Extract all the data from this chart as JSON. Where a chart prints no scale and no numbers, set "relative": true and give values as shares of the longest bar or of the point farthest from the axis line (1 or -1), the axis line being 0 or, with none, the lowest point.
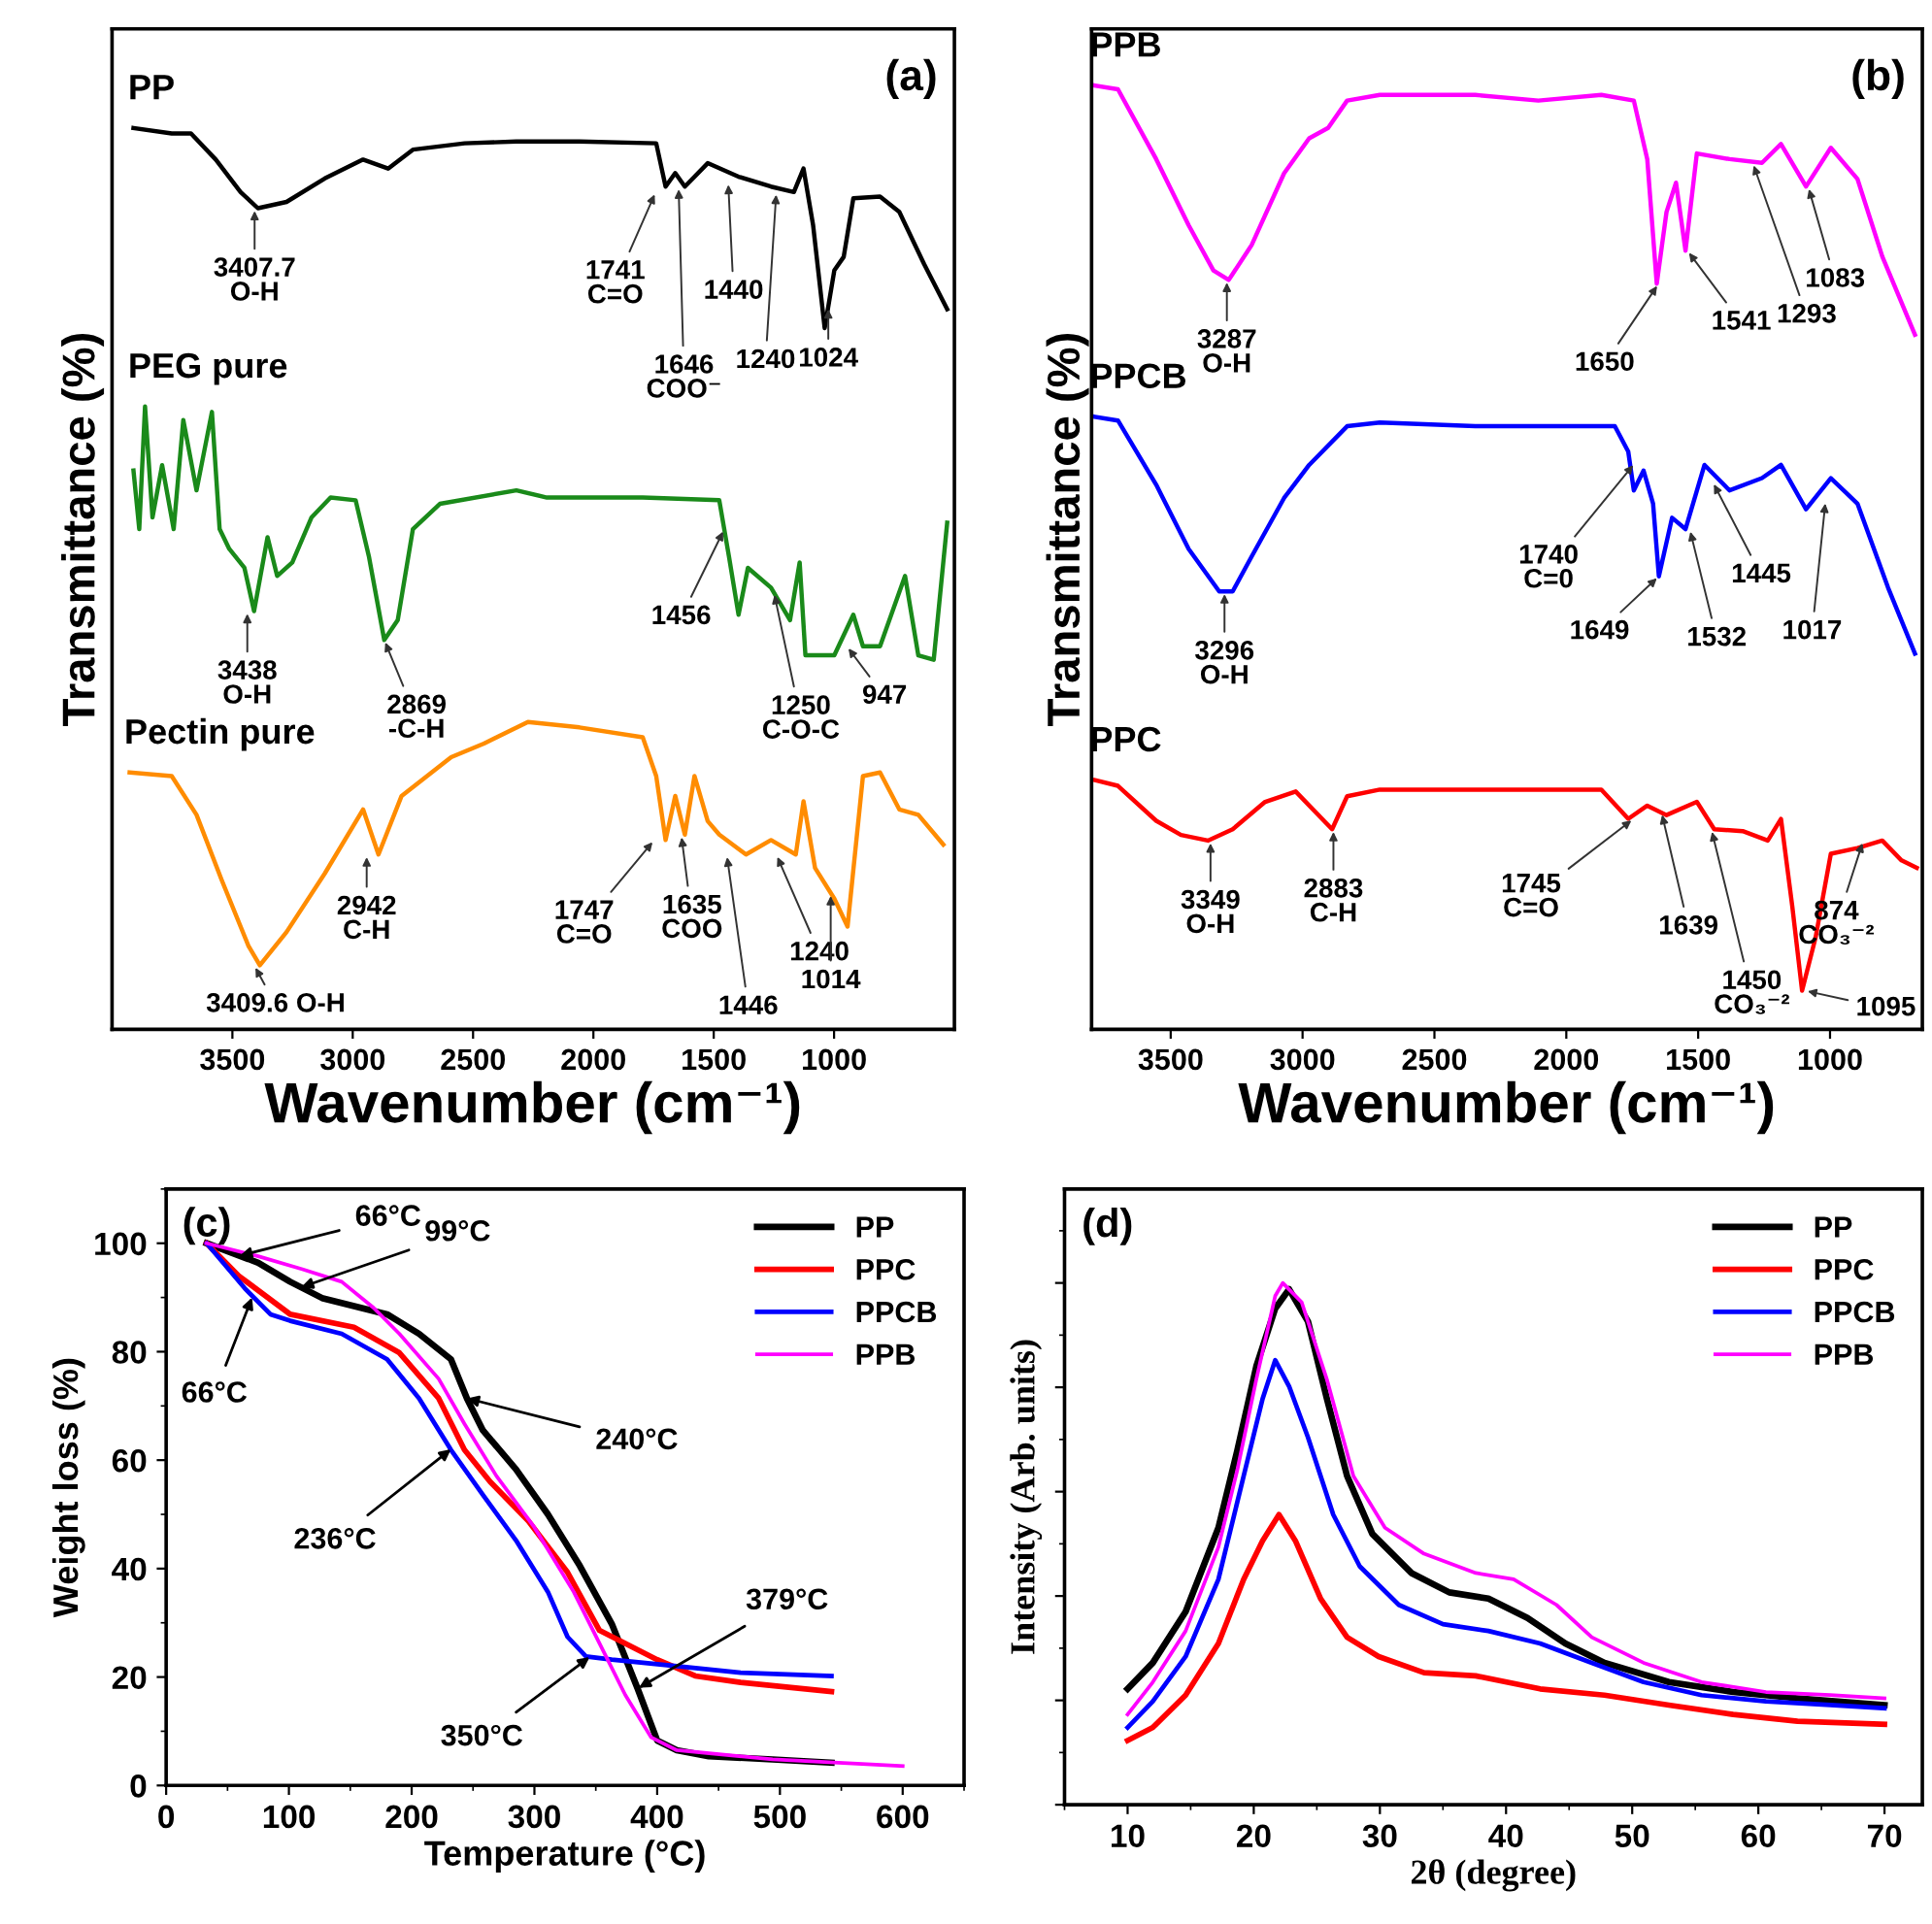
{
  "chart_data": [
    {
      "type": "line",
      "relative": true,
      "xlabel": "Wavenumber (cm⁻¹)",
      "ylabel": "Transmittance (%)",
      "xlim": [
        4000,
        500
      ],
      "xticks": [
        3500,
        3000,
        2500,
        2000,
        1500,
        1000
      ],
      "tick_labels": "x",
      "legend": false,
      "grid": false,
      "marker": "none",
      "line_style": "solid",
      "series": [
        {
          "name": "PP",
          "color": "#000000",
          "x": [
            3911,
            3752,
            3672,
            3569,
            3466,
            3394,
            3275,
            3116,
            2957,
            2853,
            2750,
            2535,
            2320,
            2058,
            1739,
            1700,
            1660,
            1620,
            1525,
            1397,
            1262,
            1167,
            1127,
            1087,
            1039,
            999,
            960,
            920,
            809,
            729,
            626,
            530
          ],
          "values": [
            1.0,
            0.994,
            0.994,
            0.965,
            0.929,
            0.911,
            0.918,
            0.944,
            0.965,
            0.955,
            0.976,
            0.983,
            0.985,
            0.985,
            0.983,
            0.935,
            0.95,
            0.935,
            0.961,
            0.946,
            0.935,
            0.929,
            0.955,
            0.892,
            0.778,
            0.842,
            0.857,
            0.922,
            0.924,
            0.907,
            0.849,
            0.799
          ]
        },
        {
          "name": "PEG pure",
          "color": "#1a8a1a",
          "x": [
            3911,
            3887,
            3863,
            3832,
            3792,
            3744,
            3704,
            3649,
            3585,
            3553,
            3513,
            3450,
            3410,
            3354,
            3314,
            3251,
            3171,
            3092,
            2988,
            2933,
            2869,
            2813,
            2750,
            2638,
            2320,
            2193,
            1795,
            1477,
            1437,
            1397,
            1358,
            1262,
            1183,
            1143,
            1119,
            999,
            920,
            880,
            809,
            705,
            650,
            586,
            530
          ],
          "values": [
            0.62,
            0.555,
            0.691,
            0.568,
            0.626,
            0.555,
            0.676,
            0.598,
            0.685,
            0.555,
            0.533,
            0.512,
            0.464,
            0.546,
            0.503,
            0.518,
            0.568,
            0.59,
            0.587,
            0.525,
            0.432,
            0.454,
            0.555,
            0.583,
            0.598,
            0.59,
            0.59,
            0.587,
            0.525,
            0.46,
            0.512,
            0.49,
            0.454,
            0.518,
            0.415,
            0.415,
            0.46,
            0.425,
            0.425,
            0.503,
            0.415,
            0.41,
            0.562
          ]
        },
        {
          "name": "Pectin pure",
          "color": "#ff8c00",
          "x": [
            3927,
            3752,
            3649,
            3545,
            3434,
            3386,
            3275,
            3116,
            2957,
            2893,
            2797,
            2591,
            2455,
            2272,
            2058,
            1795,
            1739,
            1700,
            1660,
            1620,
            1580,
            1525,
            1477,
            1366,
            1262,
            1159,
            1127,
            1079,
            999,
            944,
            880,
            809,
            729,
            650,
            546
          ],
          "values": [
            0.285,
            0.281,
            0.238,
            0.166,
            0.093,
            0.071,
            0.108,
            0.173,
            0.244,
            0.194,
            0.259,
            0.302,
            0.317,
            0.341,
            0.335,
            0.324,
            0.281,
            0.21,
            0.259,
            0.216,
            0.281,
            0.231,
            0.216,
            0.194,
            0.21,
            0.194,
            0.253,
            0.179,
            0.145,
            0.114,
            0.281,
            0.285,
            0.244,
            0.238,
            0.205
          ]
        }
      ],
      "annotations": [
        {
          "text": "3407.7\nO-H",
          "x": 3407.7,
          "y": 0.911
        },
        {
          "text": "1741\nC=O",
          "x": 1741,
          "y": 0.929
        },
        {
          "text": "1646\nCOO⁻",
          "x": 1646,
          "y": 0.935
        },
        {
          "text": "1440",
          "x": 1440,
          "y": 0.94
        },
        {
          "text": "1240",
          "x": 1240,
          "y": 0.929
        },
        {
          "text": "1024",
          "x": 1024,
          "y": 0.802
        },
        {
          "text": "3438\nO-H",
          "x": 3438,
          "y": 0.464
        },
        {
          "text": "2869\n-C-H",
          "x": 2869,
          "y": 0.432
        },
        {
          "text": "1456",
          "x": 1456,
          "y": 0.555
        },
        {
          "text": "1250\nC-O-C",
          "x": 1250,
          "y": 0.485
        },
        {
          "text": "947",
          "x": 947,
          "y": 0.425
        },
        {
          "text": "3409.6 O-H",
          "x": 3409.6,
          "y": 0.071
        },
        {
          "text": "2942\nC-H",
          "x": 2942,
          "y": 0.194
        },
        {
          "text": "1747\nC=O",
          "x": 1747,
          "y": 0.21
        },
        {
          "text": "1635\nCOO",
          "x": 1635,
          "y": 0.216
        },
        {
          "text": "1446",
          "x": 1446,
          "y": 0.194
        },
        {
          "text": "1240",
          "x": 1240,
          "y": 0.194
        },
        {
          "text": "1014",
          "x": 1014,
          "y": 0.151
        },
        "(a)"
      ]
    },
    {
      "type": "line",
      "relative": true,
      "xlabel": "Wavenumber (cm⁻¹)",
      "ylabel": "Transmittance (%)",
      "xlim": [
        3800,
        650
      ],
      "xticks": [
        3500,
        3000,
        2500,
        2000,
        1500,
        1000
      ],
      "tick_labels": "x",
      "legend": false,
      "grid": false,
      "marker": "none",
      "line_style": "solid",
      "series": [
        {
          "name": "PPB",
          "color": "#ff00ff",
          "x": [
            3787,
            3700,
            3555,
            3432,
            3338,
            3280,
            3193,
            3070,
            2975,
            2903,
            2831,
            2707,
            2345,
            2106,
            1867,
            1744,
            1693,
            1657,
            1620,
            1584,
            1548,
            1505,
            1381,
            1258,
            1186,
            1091,
            997,
            896,
            802,
            678
          ],
          "values": [
            1.0,
            0.996,
            0.922,
            0.852,
            0.804,
            0.794,
            0.831,
            0.907,
            0.944,
            0.955,
            0.984,
            0.99,
            0.99,
            0.984,
            0.99,
            0.984,
            0.922,
            0.79,
            0.866,
            0.897,
            0.825,
            0.928,
            0.922,
            0.918,
            0.938,
            0.893,
            0.934,
            0.901,
            0.819,
            0.736
          ]
        },
        {
          "name": "PPCB",
          "color": "#0000ff",
          "x": [
            3787,
            3700,
            3555,
            3432,
            3316,
            3265,
            3193,
            3070,
            2975,
            2831,
            2707,
            2345,
            2106,
            1816,
            1765,
            1744,
            1707,
            1671,
            1649,
            1599,
            1548,
            1476,
            1381,
            1258,
            1186,
            1091,
            997,
            896,
            780,
            678
          ],
          "values": [
            0.649,
            0.645,
            0.577,
            0.509,
            0.464,
            0.464,
            0.501,
            0.563,
            0.598,
            0.639,
            0.643,
            0.639,
            0.639,
            0.639,
            0.612,
            0.571,
            0.592,
            0.557,
            0.48,
            0.542,
            0.53,
            0.598,
            0.571,
            0.584,
            0.598,
            0.551,
            0.584,
            0.557,
            0.468,
            0.398
          ]
        },
        {
          "name": "PPC",
          "color": "#ff0000",
          "x": [
            3787,
            3700,
            3555,
            3461,
            3359,
            3265,
            3142,
            3026,
            2888,
            2831,
            2707,
            2345,
            1867,
            1765,
            1693,
            1620,
            1505,
            1439,
            1331,
            1236,
            1186,
            1143,
            1106,
            1055,
            997,
            896,
            802,
            729,
            671
          ],
          "values": [
            0.264,
            0.258,
            0.221,
            0.206,
            0.2,
            0.212,
            0.241,
            0.252,
            0.212,
            0.247,
            0.254,
            0.254,
            0.254,
            0.223,
            0.237,
            0.227,
            0.241,
            0.212,
            0.21,
            0.2,
            0.223,
            0.13,
            0.041,
            0.097,
            0.186,
            0.192,
            0.2,
            0.179,
            0.171
          ]
        }
      ],
      "annotations": [
        {
          "text": "3287\nO-H",
          "x": 3287,
          "y": 0.794
        },
        {
          "text": "1650",
          "x": 1650,
          "y": 0.79
        },
        {
          "text": "1541",
          "x": 1541,
          "y": 0.825
        },
        {
          "text": "1293",
          "x": 1293,
          "y": 0.918
        },
        {
          "text": "1083",
          "x": 1083,
          "y": 0.893
        },
        {
          "text": "3296\nO-H",
          "x": 3296,
          "y": 0.464
        },
        {
          "text": "1740\nC=0",
          "x": 1740,
          "y": 0.6
        },
        {
          "text": "1649",
          "x": 1649,
          "y": 0.48
        },
        {
          "text": "1532",
          "x": 1532,
          "y": 0.53
        },
        {
          "text": "1445",
          "x": 1445,
          "y": 0.58
        },
        {
          "text": "1017",
          "x": 1017,
          "y": 0.56
        },
        {
          "text": "3349\nO-H",
          "x": 3349,
          "y": 0.2
        },
        {
          "text": "2883\nC-H",
          "x": 2883,
          "y": 0.212
        },
        {
          "text": "1745\nC=O",
          "x": 1745,
          "y": 0.223
        },
        {
          "text": "1639",
          "x": 1639,
          "y": 0.23
        },
        {
          "text": "1450\nCO₃⁻²",
          "x": 1450,
          "y": 0.212
        },
        {
          "text": "1095",
          "x": 1095,
          "y": 0.041
        },
        {
          "text": "874\nCO₃⁻²",
          "x": 874,
          "y": 0.2
        },
        "(b)"
      ]
    },
    {
      "type": "line",
      "xlabel": "Temperature (°C)",
      "ylabel": "Weight loss (%)",
      "xlim": [
        0,
        650
      ],
      "xticks": [
        0,
        100,
        200,
        300,
        400,
        500,
        600
      ],
      "ylim": [
        0,
        110
      ],
      "yticks": [
        0,
        20,
        40,
        60,
        80,
        100
      ],
      "legend": "top right",
      "grid": false,
      "marker": "none",
      "line_style": "solid",
      "series": [
        {
          "name": "PP",
          "color": "#000000",
          "x": [
            33,
            75,
            101,
            127,
            180,
            206,
            232,
            245,
            258,
            285,
            311,
            337,
            363,
            384,
            400,
            416,
            442,
            494,
            542
          ],
          "values": [
            100,
            96.4,
            92.9,
            89.9,
            86.9,
            83.3,
            78.6,
            71.4,
            65.5,
            58.3,
            50,
            40.5,
            29.8,
            17.9,
            8.3,
            6.5,
            5.4,
            4.8,
            4.2
          ]
        },
        {
          "name": "PPC",
          "color": "#ff0000",
          "x": [
            33,
            59,
            101,
            153,
            190,
            222,
            243,
            264,
            295,
            327,
            353,
            374,
            400,
            431,
            468,
            542
          ],
          "values": [
            100,
            94,
            86.9,
            84.5,
            79.8,
            71.4,
            61.9,
            56,
            48.8,
            39.3,
            28.6,
            26.2,
            23.2,
            20.2,
            19,
            17.3
          ]
        },
        {
          "name": "PPCB",
          "color": "#0000ff",
          "x": [
            33,
            64,
            85,
            101,
            143,
            180,
            206,
            232,
            258,
            285,
            311,
            327,
            342,
            363,
            416,
            468,
            542
          ],
          "values": [
            100,
            91.7,
            86.9,
            85.7,
            83.3,
            78.6,
            71.4,
            61.9,
            53.6,
            45.2,
            35.7,
            27.4,
            23.8,
            23.2,
            22,
            20.8,
            20.2
          ]
        },
        {
          "name": "PPB",
          "color": "#ff00ff",
          "x": [
            33,
            75,
            111,
            143,
            169,
            190,
            222,
            243,
            269,
            300,
            332,
            353,
            374,
            395,
            416,
            494,
            600
          ],
          "values": [
            100,
            97.6,
            95.2,
            92.9,
            88.1,
            83.3,
            75,
            66.7,
            57.1,
            47.6,
            35.7,
            26.2,
            16.7,
            8.9,
            6.5,
            4.8,
            3.6
          ]
        }
      ],
      "annotations": [
        {
          "text": "66°C",
          "x": 60,
          "y": 97.7
        },
        {
          "text": "99°C",
          "x": 110,
          "y": 91.9
        },
        {
          "text": "66°C",
          "x": 70,
          "y": 90
        },
        {
          "text": "240°C",
          "x": 245,
          "y": 71.4
        },
        {
          "text": "236°C",
          "x": 232,
          "y": 62
        },
        {
          "text": "379°C",
          "x": 385,
          "y": 18
        },
        {
          "text": "350°C",
          "x": 345,
          "y": 23.7
        },
        "(c)"
      ]
    },
    {
      "type": "line",
      "relative": true,
      "xlabel": "2θ (degree)",
      "ylabel": "Intensity (Arb. units)",
      "xlim": [
        5,
        73
      ],
      "xticks": [
        10,
        20,
        30,
        40,
        50,
        60,
        70
      ],
      "tick_labels": "x",
      "legend": "top right",
      "grid": false,
      "marker": "none",
      "line_style": "solid",
      "series": [
        {
          "name": "PP",
          "color": "#000000",
          "x": [
            10,
            12,
            14.6,
            17.2,
            18.7,
            20.2,
            21.7,
            22.8,
            24.3,
            25.8,
            27.4,
            29.4,
            32.5,
            35.5,
            38.6,
            41.7,
            44.7,
            47.8,
            52.9,
            58,
            63.1,
            70
          ],
          "values": [
            0.222,
            0.272,
            0.37,
            0.531,
            0.679,
            0.84,
            0.951,
            0.988,
            0.926,
            0.778,
            0.63,
            0.519,
            0.444,
            0.407,
            0.395,
            0.358,
            0.309,
            0.272,
            0.235,
            0.216,
            0.204,
            0.191
          ]
        },
        {
          "name": "PPC",
          "color": "#ff0000",
          "x": [
            10,
            12,
            14.6,
            17.2,
            19.2,
            20.7,
            22,
            23.3,
            25.3,
            27.4,
            29.9,
            33.5,
            37.6,
            42.7,
            47.8,
            52.9,
            58,
            63.1,
            70
          ],
          "values": [
            0.123,
            0.148,
            0.21,
            0.309,
            0.432,
            0.506,
            0.556,
            0.506,
            0.395,
            0.321,
            0.284,
            0.253,
            0.247,
            0.222,
            0.21,
            0.191,
            0.173,
            0.16,
            0.154
          ]
        },
        {
          "name": "PPCB",
          "color": "#0000ff",
          "x": [
            10,
            12,
            14.6,
            17.2,
            19.2,
            20.7,
            21.7,
            22.8,
            24.3,
            26.3,
            28.4,
            31.5,
            35,
            38.6,
            42.7,
            46.8,
            50.9,
            55.5,
            60.6,
            65.7,
            70
          ],
          "values": [
            0.148,
            0.198,
            0.284,
            0.432,
            0.63,
            0.778,
            0.852,
            0.802,
            0.704,
            0.556,
            0.457,
            0.383,
            0.346,
            0.333,
            0.309,
            0.272,
            0.235,
            0.21,
            0.198,
            0.191,
            0.185
          ]
        },
        {
          "name": "PPB",
          "color": "#ff00ff",
          "x": [
            10,
            12,
            14.6,
            17.2,
            18.7,
            20.2,
            21.7,
            22.3,
            23.8,
            25.8,
            27.9,
            30.4,
            33.5,
            37.6,
            40.6,
            44,
            46.8,
            50.9,
            55.5,
            60.6,
            65.7,
            70
          ],
          "values": [
            0.173,
            0.235,
            0.333,
            0.494,
            0.642,
            0.815,
            0.975,
            1.0,
            0.963,
            0.815,
            0.63,
            0.531,
            0.481,
            0.444,
            0.432,
            0.383,
            0.321,
            0.272,
            0.235,
            0.216,
            0.21,
            0.204
          ]
        }
      ],
      "annotations": [
        "(d)"
      ]
    }
  ]
}
